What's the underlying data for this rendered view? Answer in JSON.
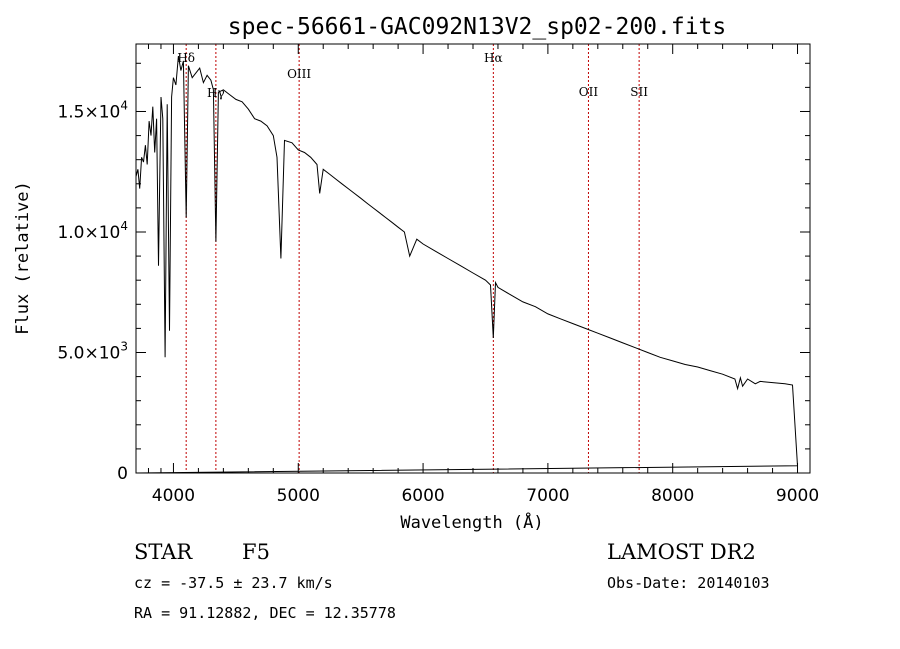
{
  "chart_data": {
    "type": "line",
    "title": "spec-56661-GAC092N13V2_sp02-200.fits",
    "xlabel": "Wavelength (Å)",
    "ylabel": "Flux (relative)",
    "xlim": [
      3700,
      9100
    ],
    "ylim": [
      0,
      17800
    ],
    "x_ticks": [
      4000,
      5000,
      6000,
      7000,
      8000,
      9000
    ],
    "x_tick_labels": [
      "4000",
      "5000",
      "6000",
      "7000",
      "8000",
      "9000"
    ],
    "y_ticks": [
      0,
      5000,
      10000,
      15000
    ],
    "y_tick_labels": [
      {
        "mant": "0",
        "exp": ""
      },
      {
        "mant": "5.0×10",
        "exp": "3"
      },
      {
        "mant": "1.0×10",
        "exp": "4"
      },
      {
        "mant": "1.5×10",
        "exp": "4"
      }
    ],
    "line_markers": [
      {
        "label": "Hδ",
        "x": 4102
      },
      {
        "label": "Hγ",
        "x": 4340
      },
      {
        "label": "OIII",
        "x": 5007
      },
      {
        "label": "Hα",
        "x": 6563
      },
      {
        "label": "OII",
        "x": 7325
      },
      {
        "label": "SII",
        "x": 7731
      }
    ],
    "series": [
      {
        "x": [
          3700,
          3715,
          3730,
          3745,
          3760,
          3775,
          3790,
          3805,
          3820,
          3835,
          3850,
          3865,
          3880,
          3889,
          3900,
          3915,
          3933,
          3950,
          3968,
          3985,
          4000,
          4020,
          4040,
          4060,
          4080,
          4102,
          4120,
          4150,
          4180,
          4210,
          4240,
          4270,
          4300,
          4320,
          4340,
          4360,
          4400,
          4450,
          4500,
          4550,
          4600,
          4650,
          4700,
          4750,
          4800,
          4830,
          4861,
          4890,
          4950,
          5000,
          5050,
          5100,
          5150,
          5172,
          5200,
          5250,
          5300,
          5350,
          5400,
          5450,
          5500,
          5550,
          5600,
          5650,
          5700,
          5750,
          5800,
          5850,
          5893,
          5950,
          6000,
          6100,
          6200,
          6300,
          6400,
          6500,
          6540,
          6563,
          6580,
          6600,
          6700,
          6800,
          6900,
          7000,
          7100,
          7200,
          7300,
          7400,
          7500,
          7600,
          7700,
          7800,
          7900,
          8000,
          8100,
          8200,
          8300,
          8400,
          8498,
          8520,
          8542,
          8560,
          8600,
          8662,
          8700,
          8800,
          8900,
          8960,
          9000
        ],
        "y": [
          12300,
          12600,
          11800,
          13100,
          12900,
          13600,
          12800,
          14600,
          14000,
          15200,
          13300,
          14700,
          8600,
          11800,
          15600,
          14700,
          4800,
          15300,
          5900,
          15600,
          16400,
          16100,
          17300,
          16700,
          17100,
          10600,
          16900,
          16400,
          16600,
          16800,
          16200,
          16500,
          16300,
          15900,
          9600,
          15800,
          15900,
          15700,
          15500,
          15400,
          15100,
          14700,
          14600,
          14400,
          14000,
          13100,
          8900,
          13800,
          13700,
          13400,
          13300,
          13100,
          12800,
          11600,
          12600,
          12400,
          12200,
          12000,
          11800,
          11600,
          11400,
          11200,
          11000,
          10800,
          10600,
          10400,
          10200,
          10000,
          9000,
          9700,
          9500,
          9200,
          8900,
          8600,
          8300,
          8000,
          7800,
          5600,
          7900,
          7700,
          7400,
          7100,
          6900,
          6600,
          6400,
          6200,
          6000,
          5800,
          5600,
          5400,
          5200,
          5000,
          4800,
          4650,
          4500,
          4400,
          4250,
          4100,
          3900,
          3500,
          3950,
          3600,
          3900,
          3700,
          3800,
          3750,
          3700,
          3650,
          300
        ]
      }
    ]
  },
  "info": {
    "obj_class": "STAR",
    "subclass": "F5",
    "survey": "LAMOST DR2",
    "cz": "cz = -37.5 ± 23.7 km/s",
    "obs_date": "Obs-Date: 20140103",
    "coords": "RA =  91.12882, DEC =  12.35778"
  },
  "colors": {
    "line": "#000000",
    "marker": "#c00000"
  }
}
